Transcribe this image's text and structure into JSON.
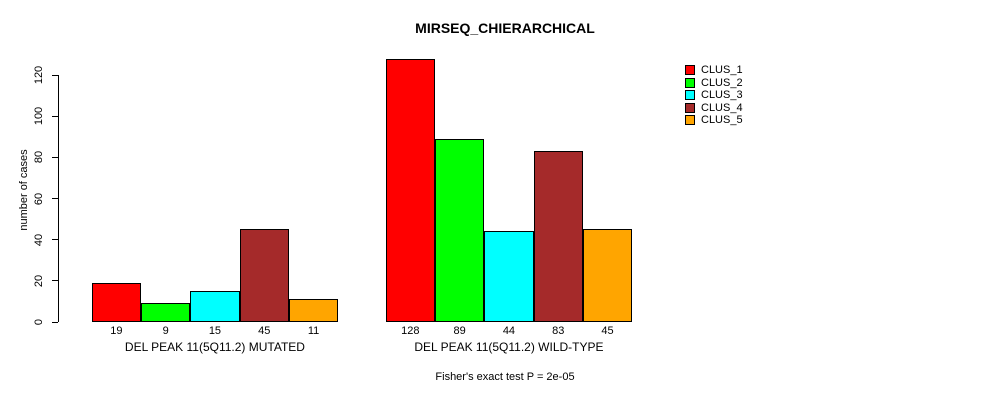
{
  "chart_data": {
    "type": "bar",
    "title": "MIRSEQ_CHIERARCHICAL",
    "ylabel": "number of cases",
    "xlabel": "",
    "ylim": [
      0,
      120
    ],
    "yticks": [
      0,
      20,
      40,
      60,
      80,
      100,
      120
    ],
    "grid": false,
    "legend_position": "right",
    "bars_have_black_borders": true,
    "show_values_under_bars": true,
    "series": [
      {
        "name": "CLUS_1",
        "color": "#FF0000"
      },
      {
        "name": "CLUS_2",
        "color": "#00FF00"
      },
      {
        "name": "CLUS_3",
        "color": "#00FFFF"
      },
      {
        "name": "CLUS_4",
        "color": "#A52A2A"
      },
      {
        "name": "CLUS_5",
        "color": "#FFA500"
      }
    ],
    "groups": [
      {
        "label": "DEL PEAK 11(5Q11.2) MUTATED",
        "values": [
          19,
          9,
          15,
          45,
          11
        ]
      },
      {
        "label": "DEL PEAK 11(5Q11.2) WILD-TYPE",
        "values": [
          128,
          89,
          44,
          83,
          45
        ]
      }
    ],
    "annotation": "Fisher's exact test P = 2e-05"
  }
}
